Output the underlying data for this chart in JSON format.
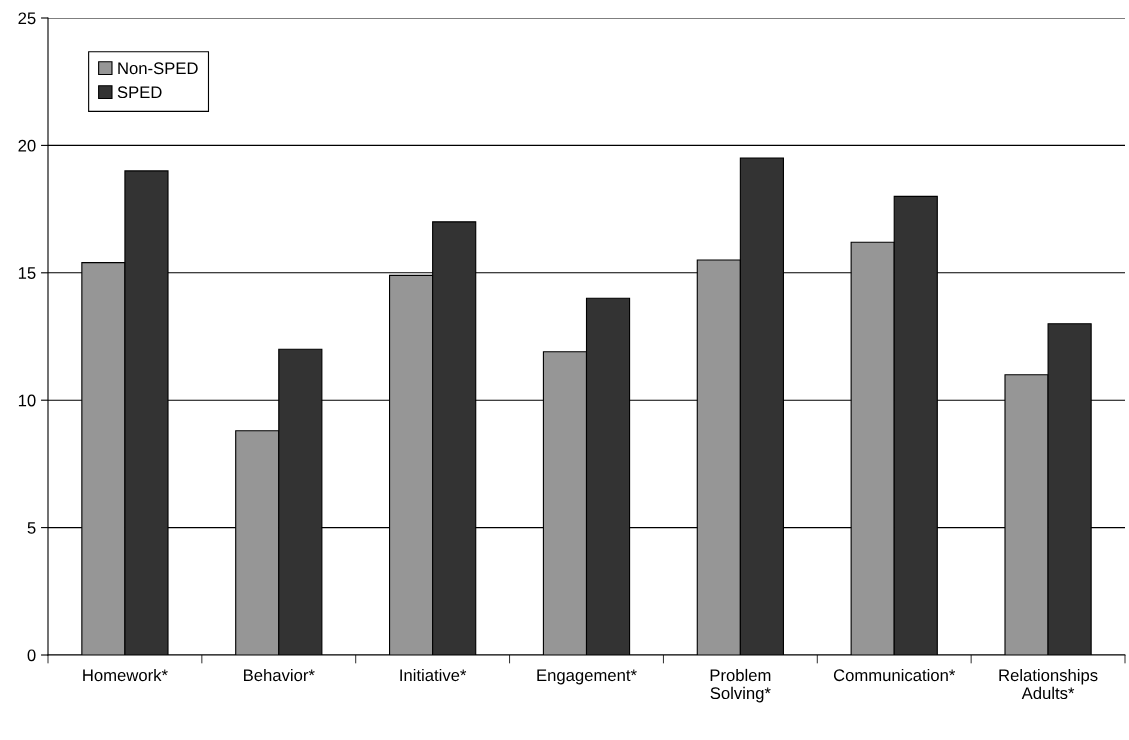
{
  "chart_data": {
    "type": "bar",
    "categories": [
      "Homework*",
      "Behavior*",
      "Initiative*",
      "Engagement*",
      "Problem\nSolving*",
      "Communication*",
      "Relationships\nAdults*"
    ],
    "series": [
      {
        "name": "Non-SPED",
        "color": "#969696",
        "values": [
          15.4,
          8.8,
          14.9,
          11.9,
          15.5,
          16.2,
          11
        ]
      },
      {
        "name": "SPED",
        "color": "#333333",
        "values": [
          19,
          12,
          17,
          14,
          19.5,
          18,
          13
        ]
      }
    ],
    "ylim": [
      0,
      25
    ],
    "yticks": [
      0,
      5,
      10,
      15,
      20,
      25
    ],
    "grid": "y",
    "legend": "top left"
  }
}
